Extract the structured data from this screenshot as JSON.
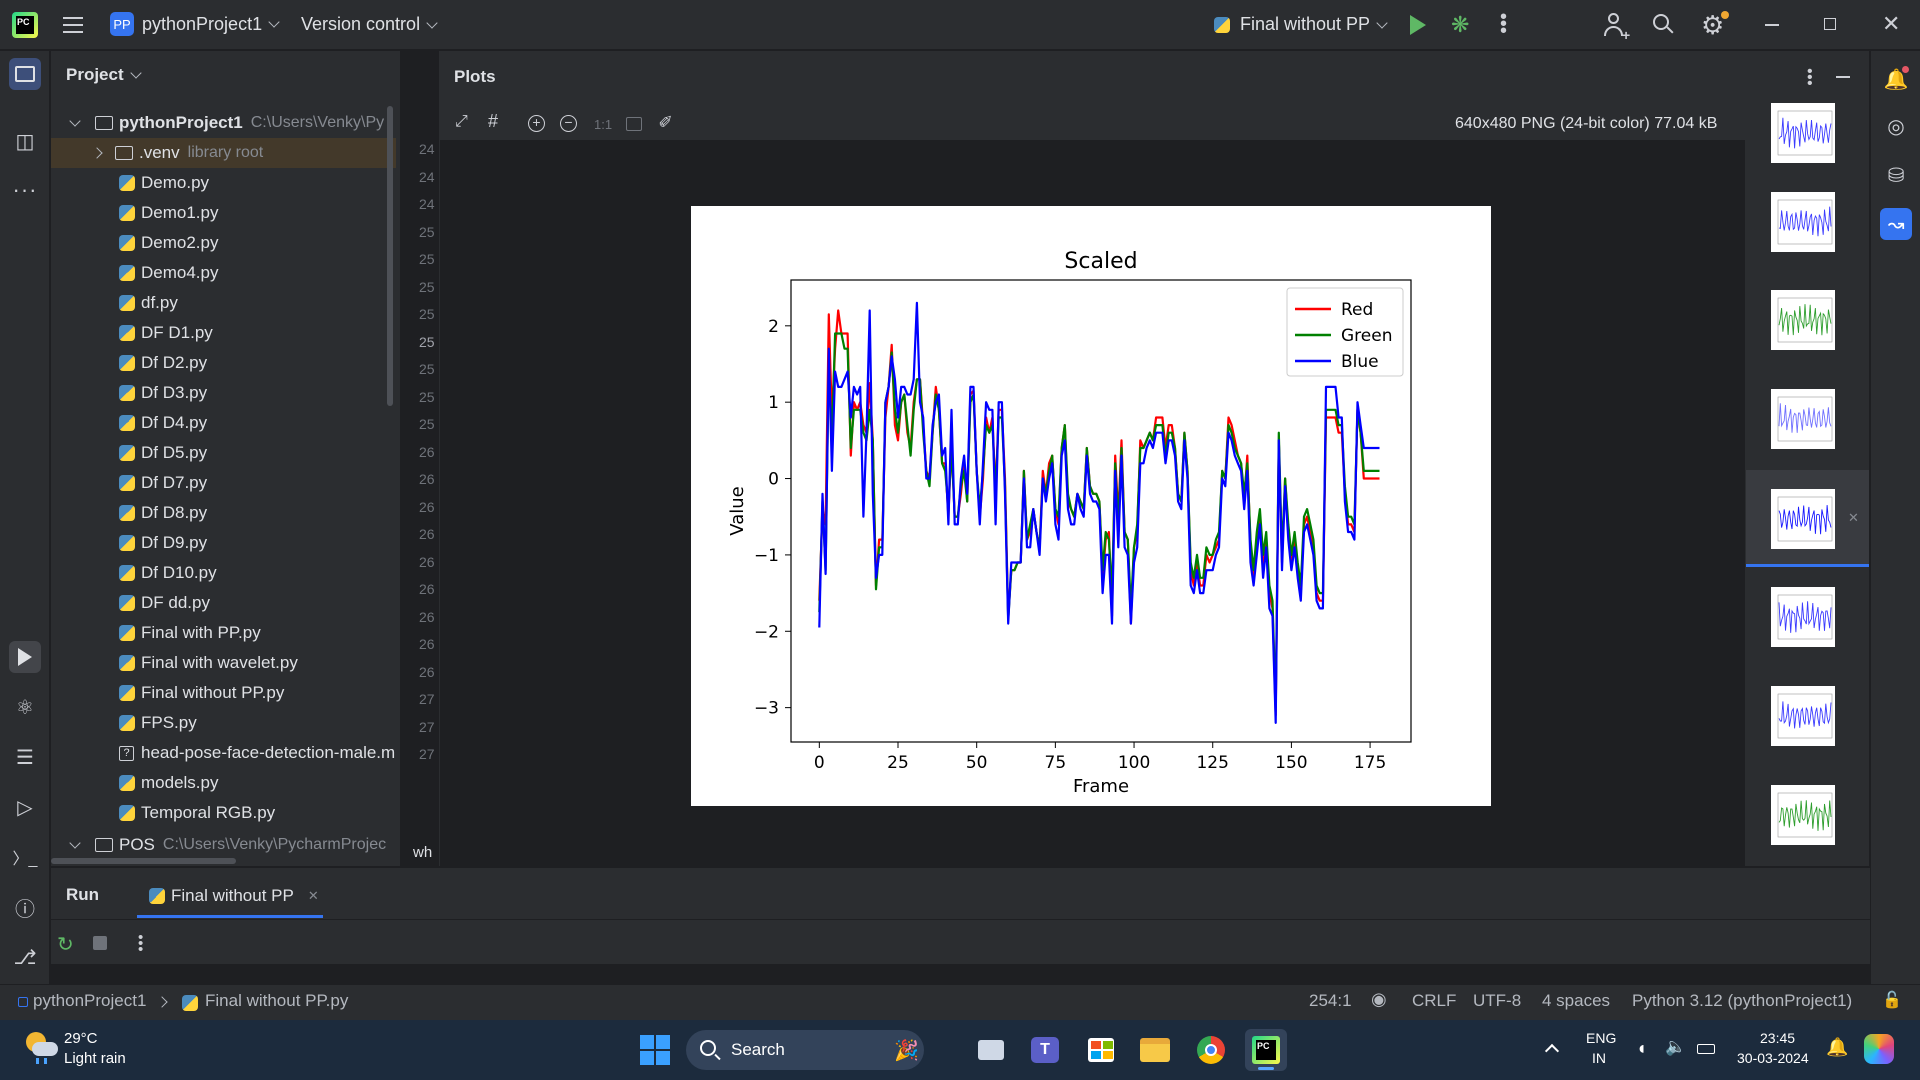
{
  "titlebar": {
    "project_badge": "PP",
    "project_name": "pythonProject1",
    "vcs": "Version control",
    "run_config": "Final without PP"
  },
  "project_panel": {
    "title": "Project",
    "root": {
      "name": "pythonProject1",
      "path": "C:\\Users\\Venky\\Py"
    },
    "venv": {
      "name": ".venv",
      "note": "library root"
    },
    "files": [
      "Demo.py",
      "Demo1.py",
      "Demo2.py",
      "Demo4.py",
      "df.py",
      "DF D1.py",
      "Df D2.py",
      "Df D3.py",
      "Df D4.py",
      "Df D5.py",
      "Df D7.py",
      "Df D8.py",
      "Df D9.py",
      "Df D10.py",
      "DF dd.py",
      "Final with PP.py",
      "Final with wavelet.py",
      "Final without PP.py",
      "FPS.py",
      "head-pose-face-detection-male.m",
      "models.py",
      "Temporal RGB.py"
    ],
    "pos": {
      "name": "POS",
      "path": "C:\\Users\\Venky\\PycharmProjec"
    }
  },
  "gutter": {
    "lines": [
      "24",
      "24",
      "24",
      "25",
      "25",
      "25",
      "25",
      "25",
      "25",
      "25",
      "25",
      "26",
      "26",
      "26",
      "26",
      "26",
      "26",
      "26",
      "26",
      "26",
      "27",
      "27",
      "27"
    ],
    "bottom_text": "wh"
  },
  "plots": {
    "title": "Plots",
    "image_info": "640x480 PNG (24-bit color) 77.04 kB",
    "zoom_label": "1:1"
  },
  "chart_data": {
    "type": "line",
    "title": "Scaled",
    "xlabel": "Frame",
    "ylabel": "Value",
    "xlim": [
      -9,
      188
    ],
    "ylim": [
      -3.45,
      2.6
    ],
    "xticks": [
      0,
      25,
      50,
      75,
      100,
      125,
      150,
      175
    ],
    "yticks": [
      2,
      1,
      0,
      -1,
      -2,
      -3
    ],
    "ytick_labels": [
      "2",
      "1",
      "0",
      "−1",
      "−2",
      "−3"
    ],
    "grid": false,
    "legend": "top-right",
    "x": [
      0,
      1,
      2,
      3,
      4,
      5,
      6,
      7,
      8,
      9,
      10,
      11,
      12,
      13,
      14,
      15,
      16,
      17,
      18,
      19,
      20,
      21,
      22,
      23,
      24,
      25,
      26,
      27,
      28,
      29,
      30,
      31,
      32,
      33,
      34,
      35,
      36,
      37,
      38,
      39,
      40,
      41,
      42,
      43,
      44,
      45,
      46,
      47,
      48,
      49,
      50,
      51,
      52,
      53,
      54,
      55,
      56,
      57,
      58,
      59,
      60,
      61,
      62,
      63,
      64,
      65,
      66,
      67,
      68,
      69,
      70,
      71,
      72,
      73,
      74,
      75,
      76,
      77,
      78,
      79,
      80,
      81,
      82,
      83,
      84,
      85,
      86,
      87,
      88,
      89,
      90,
      91,
      92,
      93,
      94,
      95,
      96,
      97,
      98,
      99,
      100,
      101,
      102,
      103,
      104,
      105,
      106,
      107,
      108,
      109,
      110,
      111,
      112,
      113,
      114,
      115,
      116,
      117,
      118,
      119,
      120,
      121,
      122,
      123,
      124,
      125,
      126,
      127,
      128,
      129,
      130,
      131,
      132,
      133,
      134,
      135,
      136,
      137,
      138,
      139,
      140,
      141,
      142,
      143,
      144,
      145,
      146,
      147,
      148,
      149,
      150,
      151,
      152,
      153,
      154,
      155,
      156,
      157,
      158,
      159,
      160,
      161,
      162,
      163,
      164,
      165,
      166,
      167,
      168,
      169,
      170,
      171,
      172,
      173,
      174,
      175,
      176,
      177,
      178
    ],
    "series": [
      {
        "name": "Red",
        "color": "#ff0000",
        "values": [
          -1.6,
          -0.4,
          -0.6,
          2.15,
          0.8,
          1.7,
          2.2,
          1.9,
          1.9,
          1.9,
          0.3,
          1.0,
          0.9,
          1.0,
          0.7,
          0.6,
          1.25,
          0.5,
          -1.4,
          -0.8,
          -0.8,
          0.8,
          1.2,
          1.75,
          0.7,
          0.5,
          1.0,
          1.1,
          0.6,
          0.4,
          1.0,
          1.3,
          1.3,
          0.7,
          0.1,
          0.0,
          0.6,
          1.2,
          0.9,
          0.2,
          0.2,
          -0.5,
          0.5,
          -0.5,
          -0.5,
          -0.2,
          0.2,
          -0.3,
          1.1,
          1.15,
          0.1,
          -0.5,
          0.0,
          0.8,
          0.6,
          0.8,
          -0.2,
          0.9,
          0.9,
          0.0,
          -1.8,
          -1.2,
          -1.2,
          -1.1,
          -1.1,
          0.1,
          -0.8,
          -0.7,
          -0.4,
          -0.7,
          -0.9,
          0.1,
          -0.2,
          0.2,
          0.3,
          -0.4,
          -0.6,
          0.4,
          0.7,
          -0.3,
          -0.4,
          -0.5,
          -0.2,
          -0.3,
          -0.4,
          0.4,
          -0.1,
          -0.2,
          -0.2,
          -0.3,
          -1.3,
          -0.8,
          -0.7,
          -1.8,
          0.3,
          -0.5,
          0.5,
          -0.7,
          -0.8,
          -1.9,
          -0.9,
          -0.7,
          0.5,
          0.4,
          0.5,
          0.6,
          0.5,
          0.8,
          0.8,
          0.8,
          0.4,
          0.7,
          0.7,
          0.4,
          -0.2,
          -0.3,
          0.6,
          0.1,
          -1.2,
          -1.4,
          -1.1,
          -1.4,
          -1.4,
          -1.0,
          -1.1,
          -1.0,
          -0.9,
          -0.8,
          0.1,
          0.0,
          0.8,
          0.7,
          0.5,
          0.3,
          0.2,
          -0.3,
          0.3,
          -0.9,
          -1.3,
          -0.8,
          -0.5,
          -1.2,
          -0.8,
          -1.5,
          -1.7,
          -3.1,
          0.5,
          -1.1,
          0.0,
          -0.7,
          -1.1,
          -0.8,
          -1.2,
          -1.5,
          -0.6,
          -0.5,
          -0.7,
          -0.9,
          -1.5,
          -1.6,
          -1.6,
          0.8,
          0.8,
          0.8,
          0.8,
          0.6,
          0.6,
          -0.2,
          -0.6,
          -0.6,
          -0.7,
          0.9,
          0.6,
          0.0,
          0.0,
          0.0,
          0.0,
          0.0,
          0.0
        ]
      },
      {
        "name": "Green",
        "color": "#008000",
        "values": [
          -1.75,
          -0.3,
          -1.2,
          1.5,
          0.5,
          1.9,
          1.9,
          1.9,
          1.7,
          1.7,
          0.4,
          0.9,
          0.9,
          0.9,
          0.6,
          0.5,
          0.9,
          0.5,
          -1.45,
          -0.9,
          -0.9,
          1.0,
          1.2,
          1.65,
          0.9,
          0.6,
          1.0,
          1.1,
          0.7,
          0.3,
          0.9,
          1.3,
          1.3,
          0.6,
          0.1,
          -0.1,
          0.6,
          1.1,
          0.9,
          0.2,
          0.1,
          -0.4,
          0.4,
          -0.5,
          -0.5,
          -0.1,
          0.1,
          -0.3,
          1.0,
          1.1,
          0.1,
          -0.4,
          0.1,
          0.7,
          0.6,
          0.7,
          -0.2,
          0.8,
          0.8,
          -0.1,
          -1.85,
          -1.2,
          -1.2,
          -1.1,
          -1.1,
          0.1,
          -0.8,
          -0.6,
          -0.4,
          -0.7,
          -0.9,
          0.0,
          -0.2,
          0.1,
          0.3,
          -0.4,
          -0.5,
          0.4,
          0.7,
          -0.2,
          -0.4,
          -0.5,
          -0.2,
          -0.3,
          -0.4,
          0.4,
          -0.1,
          -0.2,
          -0.2,
          -0.3,
          -1.2,
          -0.7,
          -0.8,
          -1.5,
          0.2,
          -0.6,
          0.4,
          -0.7,
          -0.8,
          -1.7,
          -0.9,
          -0.6,
          0.4,
          0.4,
          0.5,
          0.6,
          0.5,
          0.7,
          0.7,
          0.7,
          0.3,
          0.6,
          0.6,
          0.4,
          -0.2,
          -0.3,
          0.6,
          0.1,
          -1.1,
          -1.3,
          -1.0,
          -1.3,
          -1.3,
          -0.9,
          -1.0,
          -1.0,
          -0.8,
          -0.7,
          0.1,
          0.0,
          0.7,
          0.6,
          0.4,
          0.3,
          0.2,
          -0.2,
          0.2,
          -0.8,
          -1.2,
          -0.7,
          -0.4,
          -1.0,
          -0.7,
          -1.4,
          -1.6,
          -3.0,
          0.6,
          -1.0,
          0.0,
          -0.6,
          -1.0,
          -0.7,
          -1.1,
          -1.4,
          -0.5,
          -0.4,
          -0.6,
          -0.8,
          -1.4,
          -1.5,
          -1.5,
          0.9,
          0.9,
          0.9,
          0.9,
          0.7,
          0.7,
          -0.1,
          -0.5,
          -0.5,
          -0.6,
          0.9,
          0.6,
          0.1,
          0.1,
          0.1,
          0.1,
          0.1,
          0.1
        ]
      },
      {
        "name": "Blue",
        "color": "#0000ff",
        "values": [
          -1.95,
          -0.2,
          -1.25,
          1.7,
          0.1,
          1.4,
          1.2,
          1.2,
          1.3,
          1.4,
          0.8,
          1.2,
          1.1,
          1.2,
          -0.5,
          0.6,
          2.2,
          -0.2,
          -1.3,
          -1.0,
          -1.0,
          1.0,
          1.2,
          1.6,
          1.3,
          0.8,
          1.2,
          1.2,
          1.1,
          1.1,
          1.3,
          2.3,
          1.0,
          0.8,
          0.0,
          0.0,
          0.7,
          1.0,
          1.1,
          0.3,
          0.4,
          -0.6,
          0.9,
          -0.6,
          -0.6,
          0.0,
          0.3,
          -0.2,
          1.2,
          1.2,
          0.1,
          -0.6,
          0.2,
          1.0,
          0.9,
          0.9,
          -0.6,
          1.0,
          1.0,
          -0.2,
          -1.9,
          -1.1,
          -1.1,
          -1.1,
          -1.1,
          0.0,
          -0.9,
          -0.9,
          -0.4,
          -0.7,
          -1.0,
          0.0,
          -0.3,
          0.0,
          0.2,
          -0.6,
          -0.8,
          0.3,
          0.5,
          -0.4,
          -0.6,
          -0.6,
          -0.2,
          -0.4,
          -0.5,
          0.3,
          -0.2,
          -0.3,
          -0.3,
          -0.4,
          -1.5,
          -1.0,
          -1.0,
          -1.9,
          0.1,
          -0.9,
          0.3,
          -0.9,
          -1.0,
          -1.9,
          -1.1,
          -0.9,
          0.2,
          0.2,
          0.4,
          0.5,
          0.4,
          0.6,
          0.6,
          0.6,
          0.2,
          0.5,
          0.5,
          0.3,
          -0.3,
          -0.4,
          0.5,
          0.0,
          -1.4,
          -1.5,
          -1.2,
          -1.5,
          -1.5,
          -1.2,
          -1.2,
          -1.2,
          -1.0,
          -0.9,
          0.0,
          -0.1,
          0.6,
          0.5,
          0.3,
          0.2,
          0.1,
          -0.4,
          0.1,
          -1.1,
          -1.4,
          -1.0,
          -0.6,
          -1.3,
          -0.9,
          -1.7,
          -1.8,
          -3.2,
          0.5,
          -1.2,
          -0.1,
          -0.8,
          -1.2,
          -0.9,
          -1.3,
          -1.6,
          -0.7,
          -0.6,
          -0.8,
          -1.0,
          -1.6,
          -1.7,
          -1.7,
          1.2,
          1.2,
          1.2,
          1.2,
          0.8,
          0.8,
          -0.3,
          -0.7,
          -0.7,
          -0.8,
          1.0,
          0.7,
          0.4,
          0.4,
          0.4,
          0.4,
          0.4,
          0.4
        ]
      }
    ]
  },
  "run_panel": {
    "title": "Run",
    "tab_label": "Final without PP"
  },
  "statusbar": {
    "crumb_project": "pythonProject1",
    "crumb_file": "Final without PP.py",
    "position": "254:1",
    "line_sep": "CRLF",
    "encoding": "UTF-8",
    "indent": "4 spaces",
    "interpreter": "Python 3.12 (pythonProject1)"
  },
  "taskbar": {
    "temperature": "29°C",
    "weather": "Light rain",
    "search_label": "Search",
    "lang_top": "ENG",
    "lang_bottom": "IN",
    "time": "23:45",
    "date": "30-03-2024"
  },
  "colors": {
    "accent": "#3574f0",
    "panel_bg": "#2b2d30",
    "editor_bg": "#1e1f22",
    "venv_highlight": "#43392a",
    "taskbar_bg": "#1c2b3d"
  }
}
